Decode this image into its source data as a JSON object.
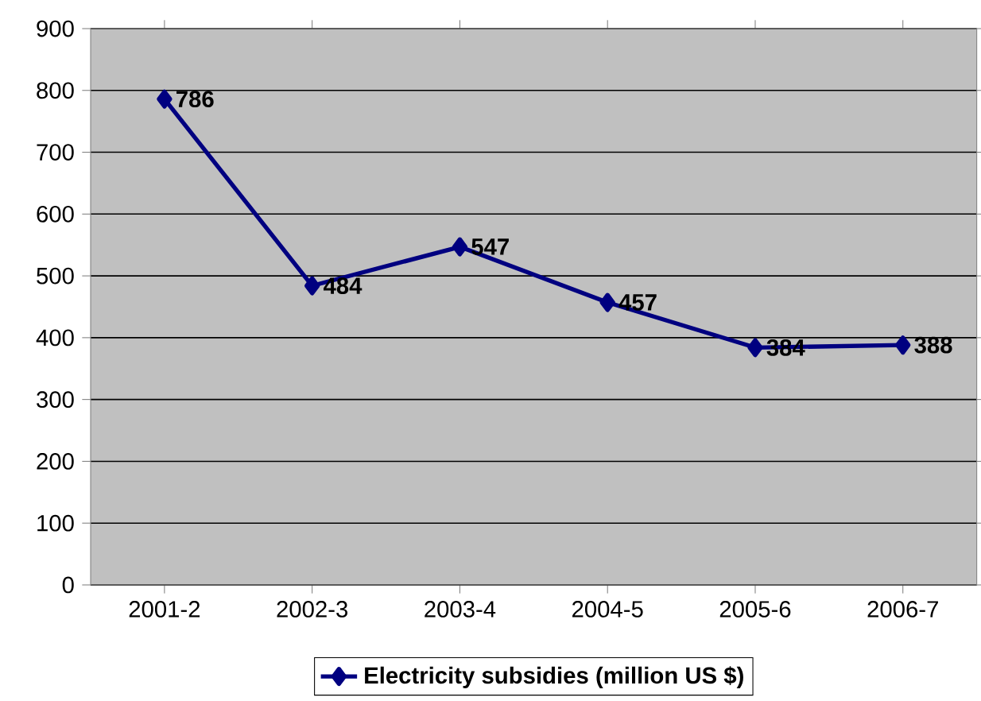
{
  "chart_data": {
    "type": "line",
    "categories": [
      "2001-2",
      "2002-3",
      "2003-4",
      "2004-5",
      "2005-6",
      "2006-7"
    ],
    "series": [
      {
        "name": "Electricity subsidies (million US $)",
        "color": "#000080",
        "values": [
          786,
          484,
          547,
          457,
          384,
          388
        ]
      }
    ],
    "ylim": [
      0,
      900
    ],
    "yticks": [
      0,
      100,
      200,
      300,
      400,
      500,
      600,
      700,
      800,
      900
    ],
    "grid": "y",
    "legend": "bottom",
    "marker": "diamond",
    "line_style": "solid",
    "data_labels": true
  }
}
